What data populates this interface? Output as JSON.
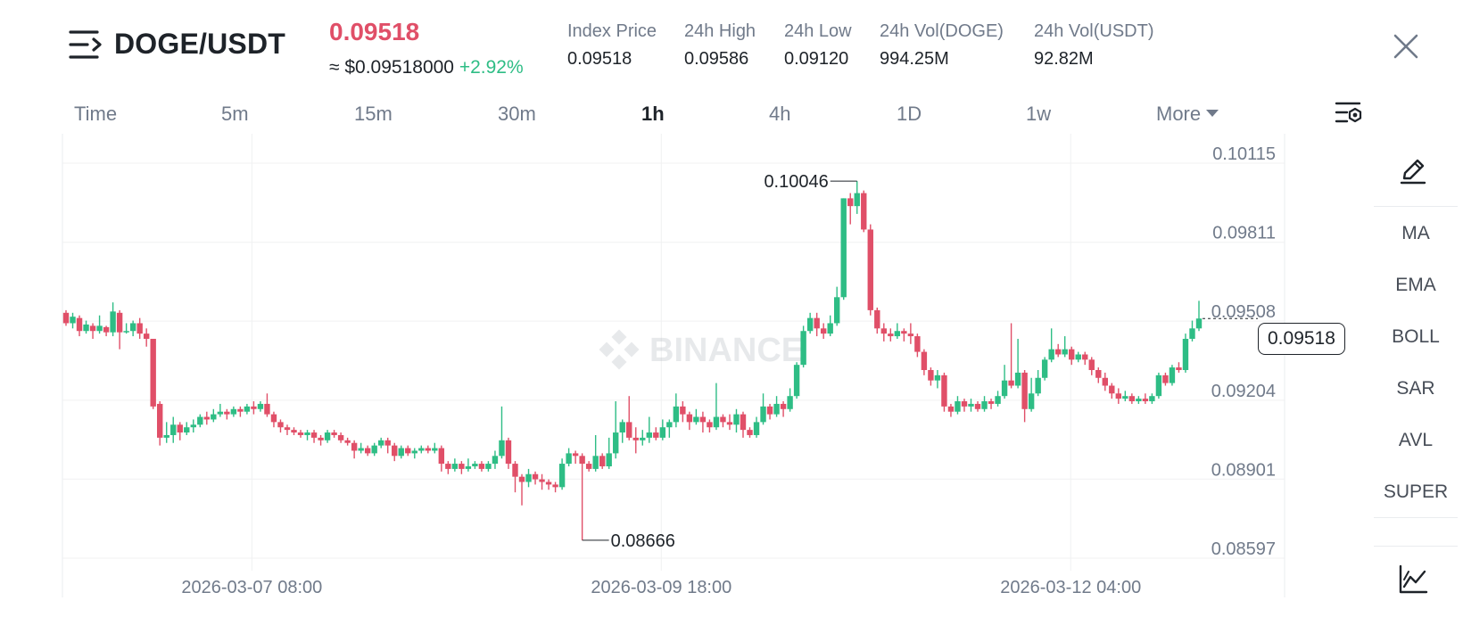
{
  "header": {
    "menu_icon": "menu-collapse-icon",
    "pair": "DOGE/USDT",
    "last_price": "0.09518",
    "approx_usd": "≈ $0.09518000",
    "change_pct": "+2.92%",
    "stats": [
      {
        "label": "Index Price",
        "value": "0.09518"
      },
      {
        "label": "24h High",
        "value": "0.09586"
      },
      {
        "label": "24h Low",
        "value": "0.09120"
      },
      {
        "label": "24h Vol(DOGE)",
        "value": "994.25M"
      },
      {
        "label": "24h Vol(USDT)",
        "value": "92.82M"
      }
    ],
    "close_icon": "close-icon"
  },
  "intervals": {
    "tabs": [
      "Time",
      "5m",
      "15m",
      "30m",
      "1h",
      "4h",
      "1D",
      "1w"
    ],
    "active": "1h",
    "more_label": "More",
    "settings_icon": "chart-settings-icon"
  },
  "sidebar": {
    "draw_icon": "pencil-icon",
    "indicators": [
      "MA",
      "EMA",
      "BOLL",
      "SAR",
      "AVL",
      "SUPER"
    ],
    "bottom_icon": "trend-chart-icon"
  },
  "chart_data": {
    "type": "candlestick",
    "watermark": "BINANCE",
    "current_price": "0.09518",
    "high_marker": "0.10046",
    "low_marker": "0.08666",
    "y_ticks": [
      "0.10115",
      "0.09811",
      "0.09508",
      "0.09204",
      "0.08901",
      "0.08597"
    ],
    "x_ticks": [
      "2026-03-07 08:00",
      "2026-03-09 18:00",
      "2026-03-12 04:00"
    ],
    "ylim": [
      0.08597,
      0.10115
    ],
    "grid": true,
    "colors": {
      "up": "#2ebd85",
      "down": "#e04f68",
      "grid": "#f0f1f2",
      "axis_text": "#707a8a"
    },
    "candles": [
      [
        0.0954,
        0.095,
        0.0955,
        0.0949
      ],
      [
        0.095,
        0.09525,
        0.0954,
        0.0948
      ],
      [
        0.0952,
        0.0947,
        0.0953,
        0.0945
      ],
      [
        0.0947,
        0.09495,
        0.0951,
        0.0946
      ],
      [
        0.0949,
        0.0947,
        0.095,
        0.0944
      ],
      [
        0.0947,
        0.0949,
        0.0953,
        0.0946
      ],
      [
        0.09485,
        0.09465,
        0.0949,
        0.0945
      ],
      [
        0.09465,
        0.09545,
        0.0958,
        0.0945
      ],
      [
        0.0954,
        0.09465,
        0.0955,
        0.094
      ],
      [
        0.09465,
        0.0947,
        0.095,
        0.0946
      ],
      [
        0.0947,
        0.095,
        0.0951,
        0.0945
      ],
      [
        0.095,
        0.0946,
        0.0952,
        0.0944
      ],
      [
        0.0946,
        0.0944,
        0.0948,
        0.0941
      ],
      [
        0.0944,
        0.0918,
        0.0944,
        0.0917
      ],
      [
        0.0919,
        0.0906,
        0.092,
        0.0903
      ],
      [
        0.0906,
        0.0907,
        0.0912,
        0.0904
      ],
      [
        0.0907,
        0.0911,
        0.0914,
        0.0904
      ],
      [
        0.0911,
        0.0908,
        0.0912,
        0.0905
      ],
      [
        0.0908,
        0.091,
        0.0912,
        0.0907
      ],
      [
        0.091,
        0.0911,
        0.0913,
        0.0908
      ],
      [
        0.0911,
        0.0914,
        0.0915,
        0.091
      ],
      [
        0.0914,
        0.0913,
        0.0916,
        0.0911
      ],
      [
        0.0913,
        0.0915,
        0.0917,
        0.0912
      ],
      [
        0.0915,
        0.0916,
        0.0919,
        0.0914
      ],
      [
        0.0916,
        0.0915,
        0.0917,
        0.0913
      ],
      [
        0.0915,
        0.0917,
        0.0918,
        0.0914
      ],
      [
        0.0917,
        0.0916,
        0.0918,
        0.0914
      ],
      [
        0.0916,
        0.0918,
        0.0919,
        0.0915
      ],
      [
        0.0918,
        0.0917,
        0.092,
        0.0915
      ],
      [
        0.0917,
        0.0919,
        0.092,
        0.0916
      ],
      [
        0.0919,
        0.0915,
        0.0923,
        0.0914
      ],
      [
        0.0915,
        0.0912,
        0.0916,
        0.091
      ],
      [
        0.0912,
        0.091,
        0.0913,
        0.0908
      ],
      [
        0.091,
        0.0909,
        0.0911,
        0.0907
      ],
      [
        0.0909,
        0.0908,
        0.091,
        0.0907
      ],
      [
        0.0908,
        0.0907,
        0.0909,
        0.0906
      ],
      [
        0.0907,
        0.0908,
        0.0909,
        0.0905
      ],
      [
        0.0908,
        0.0906,
        0.0909,
        0.0904
      ],
      [
        0.0906,
        0.0905,
        0.0907,
        0.0903
      ],
      [
        0.0905,
        0.0908,
        0.0909,
        0.0904
      ],
      [
        0.0908,
        0.0907,
        0.0909,
        0.0906
      ],
      [
        0.0907,
        0.0905,
        0.0908,
        0.0904
      ],
      [
        0.0905,
        0.0904,
        0.0906,
        0.0903
      ],
      [
        0.0904,
        0.0901,
        0.0905,
        0.0898
      ],
      [
        0.0901,
        0.0902,
        0.0904,
        0.09
      ],
      [
        0.0902,
        0.09,
        0.0903,
        0.0899
      ],
      [
        0.09,
        0.0903,
        0.0904,
        0.0899
      ],
      [
        0.0903,
        0.0905,
        0.0906,
        0.0902
      ],
      [
        0.0905,
        0.0903,
        0.0906,
        0.09
      ],
      [
        0.0903,
        0.0899,
        0.0904,
        0.0897
      ],
      [
        0.0899,
        0.0902,
        0.0903,
        0.0898
      ],
      [
        0.0902,
        0.09,
        0.0903,
        0.0899
      ],
      [
        0.09,
        0.0901,
        0.0902,
        0.0898
      ],
      [
        0.0901,
        0.0902,
        0.0903,
        0.09
      ],
      [
        0.0902,
        0.0901,
        0.0903,
        0.09
      ],
      [
        0.0901,
        0.0902,
        0.0904,
        0.09
      ],
      [
        0.0902,
        0.0896,
        0.0903,
        0.0893
      ],
      [
        0.0896,
        0.0894,
        0.0897,
        0.0892
      ],
      [
        0.0894,
        0.0896,
        0.0898,
        0.0893
      ],
      [
        0.0896,
        0.0894,
        0.0897,
        0.0892
      ],
      [
        0.0894,
        0.0895,
        0.0898,
        0.0893
      ],
      [
        0.0895,
        0.0896,
        0.0897,
        0.0894
      ],
      [
        0.0896,
        0.0894,
        0.0897,
        0.0893
      ],
      [
        0.0894,
        0.0896,
        0.0897,
        0.0893
      ],
      [
        0.0896,
        0.0899,
        0.0901,
        0.0894
      ],
      [
        0.0899,
        0.0905,
        0.0918,
        0.0898
      ],
      [
        0.0905,
        0.0896,
        0.0906,
        0.0894
      ],
      [
        0.0896,
        0.0891,
        0.0897,
        0.0885
      ],
      [
        0.0891,
        0.0889,
        0.0892,
        0.088
      ],
      [
        0.0889,
        0.0892,
        0.0894,
        0.0887
      ],
      [
        0.0892,
        0.089,
        0.0893,
        0.0888
      ],
      [
        0.089,
        0.0889,
        0.0892,
        0.0886
      ],
      [
        0.0889,
        0.0888,
        0.089,
        0.0886
      ],
      [
        0.0888,
        0.0887,
        0.0889,
        0.0885
      ],
      [
        0.0887,
        0.0896,
        0.0898,
        0.0886
      ],
      [
        0.0896,
        0.09,
        0.0902,
        0.0895
      ],
      [
        0.09,
        0.0899,
        0.0901,
        0.0896
      ],
      [
        0.0899,
        0.0896,
        0.09,
        0.08666
      ],
      [
        0.0896,
        0.0894,
        0.0897,
        0.0893
      ],
      [
        0.0894,
        0.0899,
        0.0907,
        0.0893
      ],
      [
        0.0899,
        0.0895,
        0.09,
        0.0894
      ],
      [
        0.0895,
        0.09,
        0.0906,
        0.0894
      ],
      [
        0.09,
        0.0908,
        0.092,
        0.0898
      ],
      [
        0.0908,
        0.0912,
        0.0913,
        0.0904
      ],
      [
        0.0912,
        0.0906,
        0.0922,
        0.0905
      ],
      [
        0.0906,
        0.0905,
        0.091,
        0.09
      ],
      [
        0.0905,
        0.0906,
        0.0909,
        0.0903
      ],
      [
        0.0906,
        0.0908,
        0.0914,
        0.0904
      ],
      [
        0.0908,
        0.0906,
        0.091,
        0.0905
      ],
      [
        0.0906,
        0.091,
        0.0913,
        0.0905
      ],
      [
        0.091,
        0.0912,
        0.0913,
        0.0906
      ],
      [
        0.0912,
        0.0918,
        0.0923,
        0.091
      ],
      [
        0.0918,
        0.0915,
        0.092,
        0.0912
      ],
      [
        0.0915,
        0.0912,
        0.0916,
        0.0909
      ],
      [
        0.0912,
        0.0914,
        0.0917,
        0.0911
      ],
      [
        0.0914,
        0.0912,
        0.0916,
        0.0908
      ],
      [
        0.0912,
        0.091,
        0.0913,
        0.0908
      ],
      [
        0.091,
        0.0914,
        0.0927,
        0.0909
      ],
      [
        0.0914,
        0.0912,
        0.0915,
        0.091
      ],
      [
        0.0912,
        0.0911,
        0.0915,
        0.0909
      ],
      [
        0.0911,
        0.0915,
        0.0917,
        0.0908
      ],
      [
        0.0915,
        0.0909,
        0.0916,
        0.0906
      ],
      [
        0.0909,
        0.0907,
        0.091,
        0.0906
      ],
      [
        0.0907,
        0.0912,
        0.0914,
        0.0906
      ],
      [
        0.0912,
        0.0918,
        0.0923,
        0.0911
      ],
      [
        0.0918,
        0.0915,
        0.0919,
        0.0913
      ],
      [
        0.0915,
        0.0919,
        0.0922,
        0.0914
      ],
      [
        0.0919,
        0.0917,
        0.092,
        0.0914
      ],
      [
        0.0917,
        0.0922,
        0.0925,
        0.0916
      ],
      [
        0.0922,
        0.0934,
        0.0935,
        0.0921
      ],
      [
        0.0934,
        0.0947,
        0.0949,
        0.0933
      ],
      [
        0.0947,
        0.0952,
        0.0954,
        0.0946
      ],
      [
        0.0952,
        0.0948,
        0.0954,
        0.0945
      ],
      [
        0.0948,
        0.0946,
        0.095,
        0.0944
      ],
      [
        0.0946,
        0.095,
        0.0953,
        0.0945
      ],
      [
        0.095,
        0.096,
        0.0964,
        0.0949
      ],
      [
        0.096,
        0.0998,
        0.0998,
        0.0959
      ],
      [
        0.0998,
        0.0995,
        0.1,
        0.0988
      ],
      [
        0.0995,
        0.1,
        0.10046,
        0.0992
      ],
      [
        0.1,
        0.0986,
        0.1001,
        0.0985
      ],
      [
        0.0986,
        0.0955,
        0.0988,
        0.0953
      ],
      [
        0.0955,
        0.0948,
        0.0956,
        0.0946
      ],
      [
        0.0948,
        0.0946,
        0.095,
        0.0943
      ],
      [
        0.0946,
        0.0945,
        0.0948,
        0.0943
      ],
      [
        0.0945,
        0.0947,
        0.095,
        0.0944
      ],
      [
        0.0947,
        0.0946,
        0.0948,
        0.0943
      ],
      [
        0.0946,
        0.0945,
        0.095,
        0.0942
      ],
      [
        0.0945,
        0.0939,
        0.0946,
        0.0937
      ],
      [
        0.0939,
        0.0932,
        0.094,
        0.093
      ],
      [
        0.0932,
        0.0928,
        0.0933,
        0.0926
      ],
      [
        0.0928,
        0.093,
        0.0932,
        0.0925
      ],
      [
        0.093,
        0.0918,
        0.0931,
        0.0916
      ],
      [
        0.0918,
        0.0916,
        0.0919,
        0.0914
      ],
      [
        0.0916,
        0.092,
        0.0922,
        0.0915
      ],
      [
        0.092,
        0.0918,
        0.0921,
        0.0916
      ],
      [
        0.0918,
        0.0919,
        0.0921,
        0.0916
      ],
      [
        0.0919,
        0.0917,
        0.092,
        0.0916
      ],
      [
        0.0917,
        0.092,
        0.0922,
        0.0916
      ],
      [
        0.092,
        0.0919,
        0.0921,
        0.0917
      ],
      [
        0.0919,
        0.0922,
        0.0924,
        0.0918
      ],
      [
        0.0922,
        0.0928,
        0.0934,
        0.0921
      ],
      [
        0.0928,
        0.0926,
        0.095,
        0.0925
      ],
      [
        0.0926,
        0.0931,
        0.0944,
        0.0925
      ],
      [
        0.0931,
        0.0917,
        0.0932,
        0.0912
      ],
      [
        0.0917,
        0.0923,
        0.0929,
        0.0916
      ],
      [
        0.0923,
        0.0929,
        0.0932,
        0.0922
      ],
      [
        0.0929,
        0.0936,
        0.0937,
        0.0928
      ],
      [
        0.0936,
        0.094,
        0.0948,
        0.0935
      ],
      [
        0.094,
        0.0938,
        0.0942,
        0.0937
      ],
      [
        0.0938,
        0.094,
        0.0945,
        0.0937
      ],
      [
        0.094,
        0.0936,
        0.0941,
        0.0934
      ],
      [
        0.0936,
        0.0938,
        0.0939,
        0.0935
      ],
      [
        0.0938,
        0.0936,
        0.0939,
        0.0934
      ],
      [
        0.0936,
        0.0932,
        0.0937,
        0.093
      ],
      [
        0.0932,
        0.0929,
        0.0933,
        0.0927
      ],
      [
        0.0929,
        0.0926,
        0.0931,
        0.0924
      ],
      [
        0.0926,
        0.0923,
        0.0927,
        0.0921
      ],
      [
        0.0923,
        0.0921,
        0.0925,
        0.0919
      ],
      [
        0.0921,
        0.0922,
        0.0924,
        0.092
      ],
      [
        0.0922,
        0.092,
        0.0923,
        0.0919
      ],
      [
        0.092,
        0.0921,
        0.0922,
        0.0919
      ],
      [
        0.0921,
        0.092,
        0.0923,
        0.0919
      ],
      [
        0.092,
        0.0922,
        0.0923,
        0.0919
      ],
      [
        0.0922,
        0.093,
        0.0931,
        0.0921
      ],
      [
        0.093,
        0.0927,
        0.0931,
        0.0926
      ],
      [
        0.0927,
        0.0933,
        0.0934,
        0.0926
      ],
      [
        0.0933,
        0.0932,
        0.0935,
        0.0931
      ],
      [
        0.0932,
        0.0944,
        0.0946,
        0.0931
      ],
      [
        0.0944,
        0.0948,
        0.0951,
        0.0943
      ],
      [
        0.0948,
        0.09518,
        0.09586,
        0.0947
      ]
    ]
  }
}
